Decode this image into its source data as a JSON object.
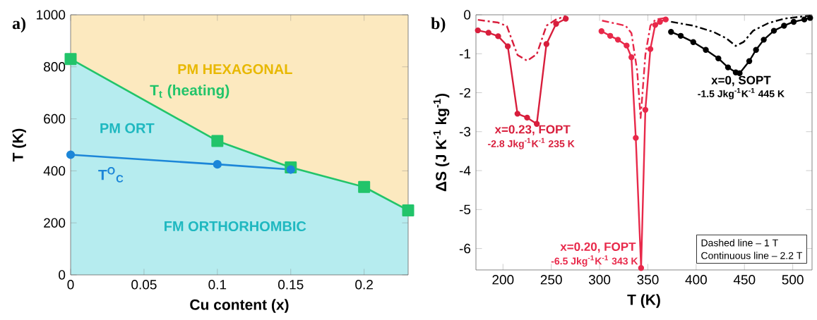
{
  "chart_data": [
    {
      "type": "line",
      "title": "a)",
      "xlabel": "Cu content (x)",
      "ylabel": "T (K)",
      "xlim": [
        0,
        0.23
      ],
      "ylim": [
        0,
        1000
      ],
      "xticks": [
        0,
        0.05,
        0.1,
        0.15,
        0.2
      ],
      "yticks": [
        0,
        200,
        400,
        600,
        800,
        1000
      ],
      "grid": false,
      "bands": [
        {
          "axis": "y",
          "from": 0,
          "to": 1000,
          "color": "#fce9bf"
        }
      ],
      "series": [
        {
          "type": "area",
          "name": "T$_{t}$ (heating)",
          "color": "#22c46a",
          "x": [
            0,
            0.1,
            0.15,
            0.2,
            0.23
          ],
          "values": [
            830,
            515,
            413,
            338,
            248
          ],
          "marker": "square"
        },
        {
          "name": "T$^{O}$$_{C}$",
          "color": "#1c86d8",
          "x": [
            0,
            0.1,
            0.15
          ],
          "values": [
            462,
            425,
            405
          ],
          "marker": "circle"
        }
      ],
      "annotations": [
        "PM HEXAGONAL",
        "PM ORT",
        "FM ORTHORHOMBIC"
      ]
    },
    {
      "type": "line",
      "title": "b)",
      "xlabel": "T (K)",
      "ylabel": "ΔS (J K$^{-1}$ kg$^{-1}$)",
      "xlim": [
        172,
        520
      ],
      "ylim": [
        -6.55,
        0
      ],
      "xticks": [
        200,
        250,
        300,
        350,
        400,
        450,
        500
      ],
      "yticks": [
        -6,
        -5,
        -4,
        -3,
        -2,
        -1,
        0
      ],
      "grid": false,
      "series": [
        {
          "color": "#d81e3c",
          "line_style": "solid",
          "marker": "circle",
          "x": [
            174,
            185,
            195,
            205,
            215,
            225,
            235,
            245,
            255,
            265
          ],
          "values": [
            -0.4,
            -0.46,
            -0.55,
            -0.81,
            -2.54,
            -2.64,
            -2.8,
            -0.75,
            -0.23,
            -0.1
          ]
        },
        {
          "color": "#d81e3c",
          "line_style": "dashed",
          "marker": "none",
          "x": [
            174,
            195,
            204,
            215,
            225,
            235,
            245,
            255,
            265
          ],
          "values": [
            -0.13,
            -0.2,
            -0.29,
            -1.03,
            -1.18,
            -1.01,
            -0.28,
            -0.12,
            -0.03
          ]
        },
        {
          "color": "#e8294a",
          "line_style": "solid",
          "marker": "circle",
          "x": [
            302,
            311,
            319,
            328,
            333,
            337.5,
            343,
            347.4,
            352.6,
            357.6,
            362.5,
            368.5
          ],
          "values": [
            -0.42,
            -0.54,
            -0.64,
            -0.79,
            -1.09,
            -3.16,
            -6.5,
            -2.44,
            -0.88,
            -0.26,
            -0.18,
            -0.12
          ]
        },
        {
          "color": "#e8294a",
          "line_style": "dashed",
          "marker": "none",
          "x": [
            302.6,
            327,
            333,
            339,
            342.5,
            347.4,
            352.6,
            358,
            368.5
          ],
          "values": [
            -0.15,
            -0.28,
            -0.47,
            -1.45,
            -2.65,
            -1.03,
            -0.28,
            -0.12,
            -0.08
          ]
        },
        {
          "color": "#000000",
          "line_style": "solid",
          "marker": "circle",
          "x": [
            374,
            384,
            397,
            410,
            423,
            433,
            441,
            445,
            455,
            462,
            470,
            480.5,
            491,
            501,
            512,
            518
          ],
          "values": [
            -0.44,
            -0.54,
            -0.7,
            -0.9,
            -1.12,
            -1.35,
            -1.48,
            -1.5,
            -1.19,
            -0.9,
            -0.64,
            -0.41,
            -0.28,
            -0.18,
            -0.12,
            -0.08
          ]
        },
        {
          "color": "#000000",
          "line_style": "dashed",
          "marker": "none",
          "x": [
            374,
            397,
            418,
            431,
            441,
            449,
            459,
            475,
            491,
            518
          ],
          "values": [
            -0.18,
            -0.28,
            -0.44,
            -0.6,
            -0.8,
            -0.7,
            -0.41,
            -0.21,
            -0.1,
            -0.02
          ]
        }
      ],
      "annotations": [
        {
          "text": "x=0.23, FOPT",
          "x": 235,
          "y": -2.8
        },
        {
          "text": "-2.8 Jkg$^{-1}$K$^{-1}$  235 K",
          "x": 235,
          "y": -2.8
        },
        {
          "text": "x=0.20, FOPT",
          "x": 343,
          "y": -6.5
        },
        {
          "text": "-6.5 Jkg$^{-1}$K$^{-1}$ 343 K",
          "x": 343,
          "y": -6.5
        },
        {
          "text": "x=0, SOPT",
          "x": 445,
          "y": -1.5
        },
        {
          "text": "-1.5 Jkg$^{-1}$K$^{-1}$  445 K",
          "x": 445,
          "y": -1.5
        },
        "Dashed line – 1 T",
        "Continuous line – 2.2 T"
      ]
    }
  ]
}
